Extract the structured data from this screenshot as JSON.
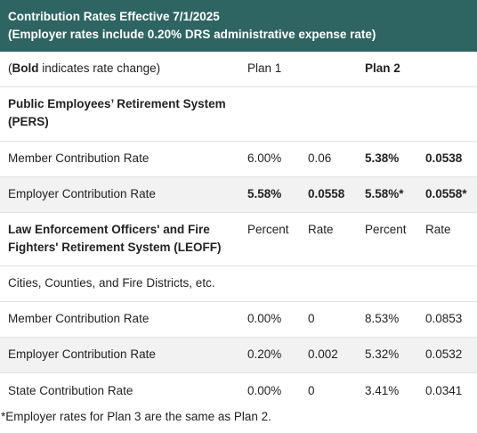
{
  "header": {
    "line1": "Contribution Rates Effective 7/1/2025",
    "line2": "(Employer rates include 0.20% DRS administrative expense rate)"
  },
  "legend_row": {
    "prefix": "(",
    "bold_word": "Bold",
    "suffix": " indicates rate change)",
    "plan1": "Plan 1",
    "plan2": "Plan 2"
  },
  "pers": {
    "title": "Public Employees’ Retirement System (PERS)",
    "member": {
      "label": "Member Contribution Rate",
      "p1_pct": "6.00%",
      "p1_rate": "0.06",
      "p2_pct": "5.38%",
      "p2_rate": "0.0538"
    },
    "employer": {
      "label": "Employer Contribution Rate",
      "p1_pct": "5.58%",
      "p1_rate": "0.0558",
      "p2_pct": "5.58%*",
      "p2_rate": "0.0558*"
    }
  },
  "leoff": {
    "title": "Law Enforcement Officers' and Fire Fighters' Retirement System (LEOFF)",
    "col_percent_1": "Percent",
    "col_rate_1": "Rate",
    "col_percent_2": "Percent",
    "col_rate_2": "Rate",
    "subgroup": "Cities, Counties, and Fire Districts, etc.",
    "member": {
      "label": "Member Contribution Rate",
      "p1_pct": "0.00%",
      "p1_rate": "0",
      "p2_pct": "8.53%",
      "p2_rate": "0.0853"
    },
    "employer": {
      "label": "Employer Contribution Rate",
      "p1_pct": "0.20%",
      "p1_rate": "0.002",
      "p2_pct": "5.32%",
      "p2_rate": "0.0532"
    },
    "state": {
      "label": "State Contribution Rate",
      "p1_pct": "0.00%",
      "p1_rate": "0",
      "p2_pct": "3.41%",
      "p2_rate": "0.0341"
    }
  },
  "footnote": "*Employer rates for Plan 3 are the same as Plan 2.",
  "colors": {
    "header_bg": "#2e6461",
    "row_shade": "#f2f2f2"
  }
}
